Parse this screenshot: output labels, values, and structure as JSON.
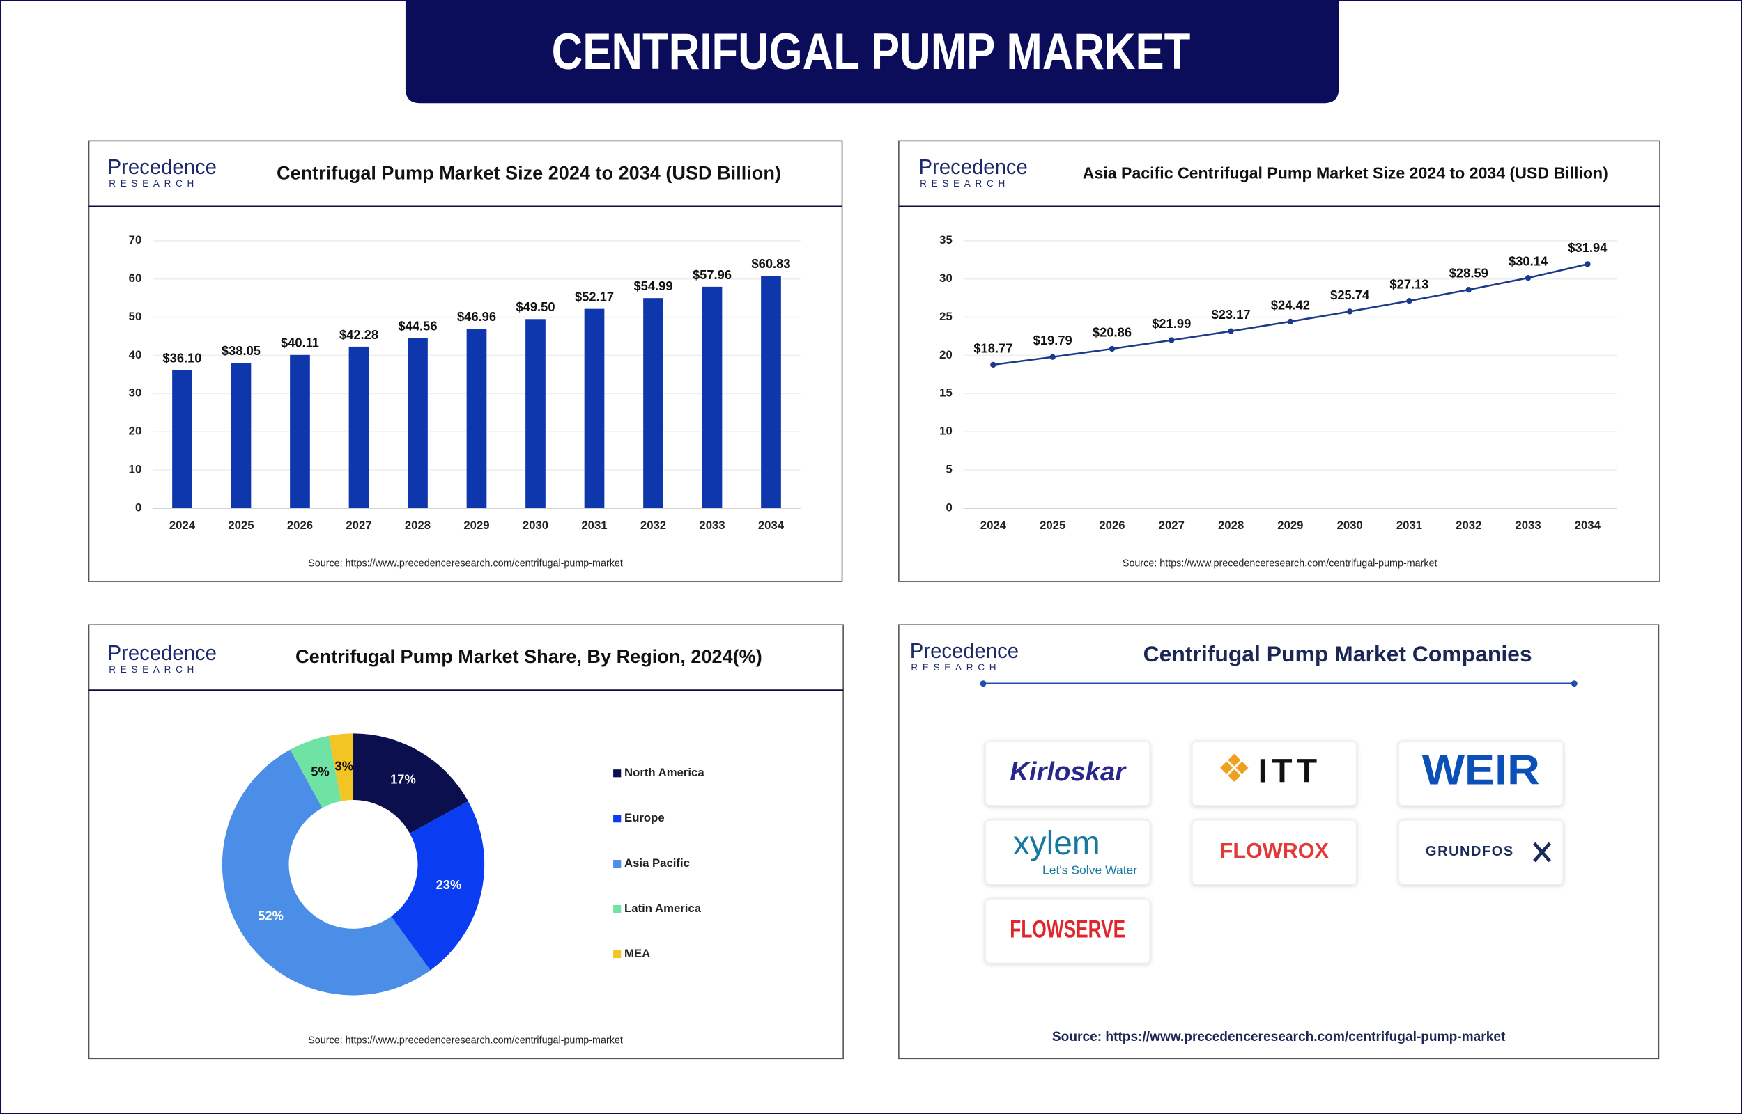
{
  "header": {
    "title": "CENTRIFUGAL PUMP MARKET"
  },
  "brand": {
    "name": "Precedence",
    "tagline": "RESEARCH"
  },
  "chart_data": [
    {
      "type": "bar",
      "title": "Centrifugal Pump Market Size 2024 to 2034 (USD Billion)",
      "categories": [
        "2024",
        "2025",
        "2026",
        "2027",
        "2028",
        "2029",
        "2030",
        "2031",
        "2032",
        "2033",
        "2034"
      ],
      "values": [
        36.1,
        38.05,
        40.11,
        42.28,
        44.56,
        46.96,
        49.5,
        52.17,
        54.99,
        57.96,
        60.83
      ],
      "value_labels": [
        "$36.10",
        "$38.05",
        "$40.11",
        "$42.28",
        "$44.56",
        "$46.96",
        "$49.50",
        "$52.17",
        "$54.99",
        "$57.96",
        "$60.83"
      ],
      "color": "#0f37ad",
      "ylim": [
        0,
        70
      ],
      "yticks": [
        0,
        10,
        20,
        30,
        40,
        50,
        60,
        70
      ],
      "grid": true,
      "source": "Source: https://www.precedenceresearch.com/centrifugal-pump-market"
    },
    {
      "type": "line",
      "title": "Asia Pacific Centrifugal Pump Market Size 2024 to 2034 (USD Billion)",
      "categories": [
        "2024",
        "2025",
        "2026",
        "2027",
        "2028",
        "2029",
        "2030",
        "2031",
        "2032",
        "2033",
        "2034"
      ],
      "values": [
        18.77,
        19.79,
        20.86,
        21.99,
        23.17,
        24.42,
        25.74,
        27.13,
        28.59,
        30.14,
        31.94
      ],
      "value_labels": [
        "$18.77",
        "$19.79",
        "$20.86",
        "$21.99",
        "$23.17",
        "$24.42",
        "$25.74",
        "$27.13",
        "$28.59",
        "$30.14",
        "$31.94"
      ],
      "color": "#1c3a8c",
      "ylim": [
        0,
        35
      ],
      "yticks": [
        0,
        5,
        10,
        15,
        20,
        25,
        30,
        35
      ],
      "grid": true,
      "source": "Source: https://www.precedenceresearch.com/centrifugal-pump-market"
    },
    {
      "type": "pie",
      "title": "Centrifugal Pump Market Share, By Region, 2024(%)",
      "categories": [
        "North America",
        "Europe",
        "Asia Pacific",
        "Latin America",
        "MEA"
      ],
      "values": [
        17,
        23,
        52,
        5,
        3
      ],
      "value_labels": [
        "17%",
        "23%",
        "52%",
        "5%",
        "3%"
      ],
      "colors": [
        "#0b0f4d",
        "#0a3df2",
        "#4a8ee8",
        "#6fe3a3",
        "#f2c424"
      ],
      "donut": true,
      "legend": "right",
      "source": "Source: https://www.precedenceresearch.com/centrifugal-pump-market"
    }
  ],
  "companies": {
    "title": "Centrifugal Pump Market Companies",
    "logos": [
      {
        "name": "Kirloskar"
      },
      {
        "name": "ITT"
      },
      {
        "name": "WEIR"
      },
      {
        "name": "xylem",
        "tagline": "Let's Solve Water"
      },
      {
        "name": "FLOWROX"
      },
      {
        "name": "GRUNDFOS"
      },
      {
        "name": "FLOWSERVE"
      }
    ],
    "source": "Source: https://www.precedenceresearch.com/centrifugal-pump-market"
  }
}
